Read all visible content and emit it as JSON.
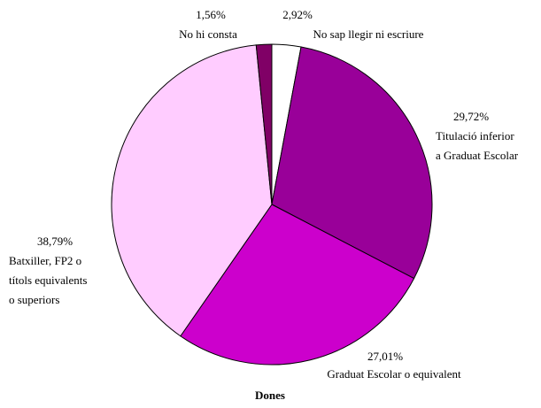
{
  "chart_data": {
    "type": "pie",
    "title": "Dones",
    "categories": [
      [
        "No sap llegir ni escriure"
      ],
      [
        "Titulació inferior",
        "a Graduat Escolar"
      ],
      [
        "Graduat Escolar o equivalent"
      ],
      [
        "Batxiller, FP2 o",
        "títols equivalents",
        "o superiors"
      ],
      [
        "No hi consta"
      ]
    ],
    "values": [
      2.92,
      29.72,
      27.01,
      38.79,
      1.56
    ],
    "value_labels": [
      "2,92%",
      "29,72%",
      "27,01%",
      "38,79%",
      "1,56%"
    ],
    "colors": [
      "#ffffff",
      "#990099",
      "#cc00cc",
      "#ffccff",
      "#800066"
    ]
  }
}
